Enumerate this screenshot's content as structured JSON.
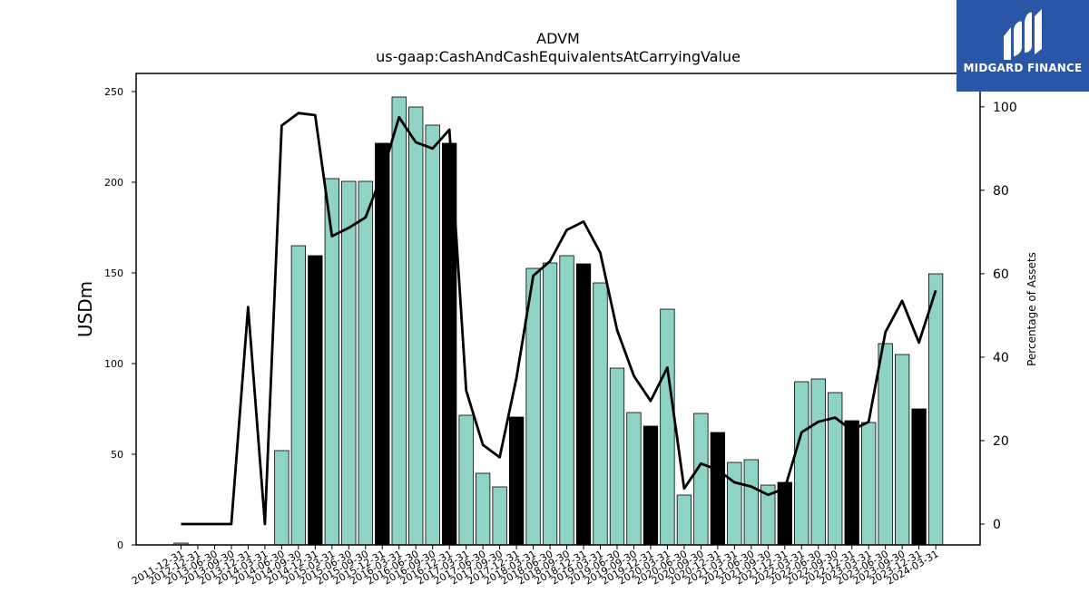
{
  "chart_data": {
    "type": "bar+line",
    "title": "ADVM",
    "subtitle": "us-gaap:CashAndCashEquivalentsAtCarryingValue",
    "ylabel": "USDm",
    "y2label": "Percentage of Assets",
    "ylim": [
      0,
      260
    ],
    "y2lim": [
      -5,
      108
    ],
    "yticks": [
      0,
      50,
      100,
      150,
      200,
      250
    ],
    "y2ticks": [
      0,
      20,
      40,
      60,
      80,
      100
    ],
    "grid": false,
    "categories": [
      "2011-12-31",
      "2012-12-31",
      "2013-06-30",
      "2013-09-30",
      "2013-12-31",
      "2014-03-31",
      "2014-06-30",
      "2014-09-30",
      "2014-12-31",
      "2015-03-31",
      "2015-06-30",
      "2015-09-30",
      "2015-12-31",
      "2016-03-31",
      "2016-06-30",
      "2016-09-30",
      "2016-12-31",
      "2017-03-31",
      "2017-06-30",
      "2017-09-30",
      "2017-12-31",
      "2018-03-31",
      "2018-06-30",
      "2018-09-30",
      "2018-12-31",
      "2019-03-31",
      "2019-06-30",
      "2019-09-30",
      "2019-12-31",
      "2020-03-31",
      "2020-06-30",
      "2020-09-30",
      "2020-12-31",
      "2021-03-31",
      "2021-06-30",
      "2021-09-30",
      "2021-12-31",
      "2022-03-31",
      "2022-06-30",
      "2022-09-30",
      "2022-12-31",
      "2023-03-31",
      "2023-06-30",
      "2023-09-30",
      "2023-12-31",
      "2024-03-31"
    ],
    "series": [
      {
        "kind": "bar",
        "values": [
          1,
          0,
          0,
          0,
          0,
          0,
          52,
          165,
          159.5,
          202,
          200.5,
          200.5,
          221.5,
          247,
          241.5,
          231.5,
          221.5,
          71.5,
          39.5,
          32,
          70.5,
          152.5,
          155.5,
          159.5,
          155,
          144.5,
          97.5,
          73,
          65.5,
          130,
          27.5,
          72.5,
          62,
          45.5,
          47,
          33,
          34.5,
          90,
          91.5,
          84,
          68.5,
          67.5,
          111,
          105,
          75,
          149.5
        ],
        "highlight": [
          false,
          false,
          false,
          false,
          false,
          false,
          false,
          false,
          true,
          false,
          false,
          false,
          true,
          false,
          false,
          false,
          true,
          false,
          false,
          false,
          true,
          false,
          false,
          false,
          true,
          false,
          false,
          false,
          true,
          false,
          false,
          false,
          true,
          false,
          false,
          false,
          true,
          false,
          false,
          false,
          true,
          false,
          false,
          false,
          true,
          false
        ]
      },
      {
        "kind": "line",
        "axis": "right",
        "values": [
          0,
          0,
          0,
          0,
          52,
          0,
          95.5,
          98.5,
          98,
          69,
          71,
          73.5,
          84,
          97.5,
          91.5,
          90,
          94.5,
          32,
          19,
          16,
          35,
          59.5,
          63,
          70.5,
          72.5,
          65,
          46.5,
          35.5,
          29.5,
          37.5,
          8.5,
          14.5,
          13,
          10,
          9,
          7,
          8.5,
          22,
          24.5,
          25.5,
          22.5,
          24.5,
          46,
          53.5,
          43.5,
          56
        ]
      }
    ],
    "colors": {
      "bar": "#8ed3c6",
      "bar_highlight": "#000000",
      "line": "#000000"
    }
  },
  "logo": {
    "text": "MIDGARD FINANCE",
    "icon": "midgard-logo-icon",
    "background": "#2a56a8"
  }
}
